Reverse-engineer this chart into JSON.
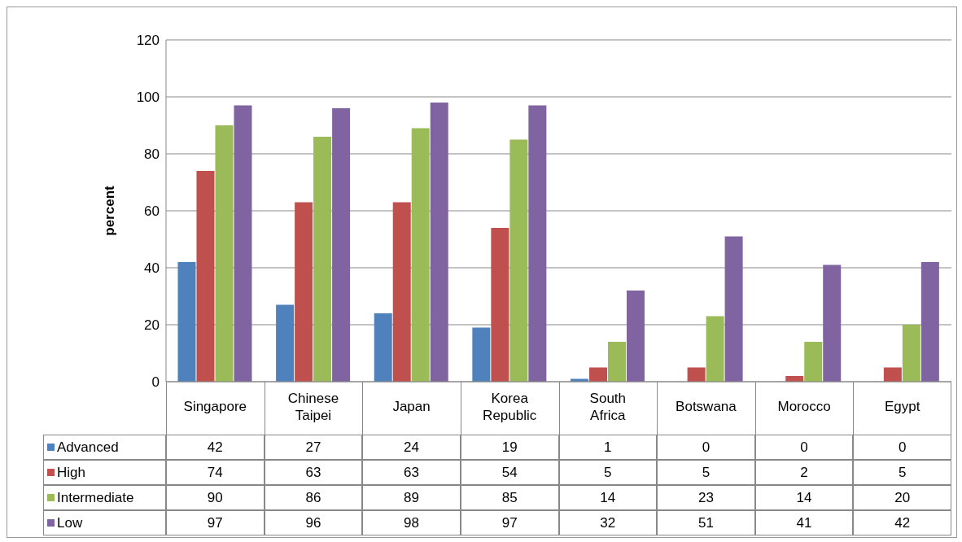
{
  "chart_data": {
    "type": "bar",
    "ylabel": "percent",
    "categories": [
      "Singapore",
      "Chinese Taipei",
      "Japan",
      "Korea Republic",
      "South Africa",
      "Botswana",
      "Morocco",
      "Egypt"
    ],
    "series": [
      {
        "name": "Advanced",
        "color": "#4f81bd",
        "values": [
          42,
          27,
          24,
          19,
          1,
          0,
          0,
          0
        ]
      },
      {
        "name": "High",
        "color": "#c0504d",
        "values": [
          74,
          63,
          63,
          54,
          5,
          5,
          2,
          5
        ]
      },
      {
        "name": "Intermediate",
        "color": "#9bbb59",
        "values": [
          90,
          86,
          89,
          85,
          14,
          23,
          14,
          20
        ]
      },
      {
        "name": "Low",
        "color": "#8064a2",
        "values": [
          97,
          96,
          98,
          97,
          32,
          51,
          41,
          42
        ]
      }
    ],
    "ylim": [
      0,
      120
    ],
    "yticks": [
      0,
      20,
      40,
      60,
      80,
      100,
      120
    ],
    "grid": "y",
    "legend": "bottom",
    "data_labels": true
  }
}
